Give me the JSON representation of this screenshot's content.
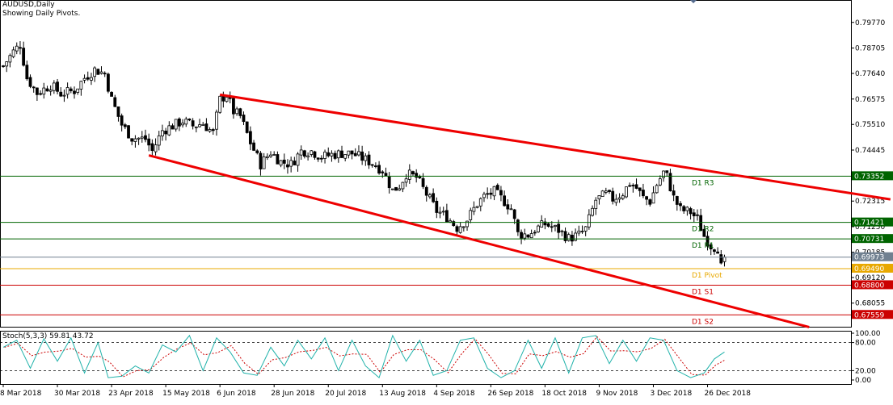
{
  "header": {
    "symbol": "AUDUSD,Daily",
    "indicator_note": "Showing Daily Pivots."
  },
  "colors": {
    "background": "#ffffff",
    "frame": "#000000",
    "bull_candle": "#ffffff",
    "bear_candle": "#000000",
    "wick": "#000000",
    "channel": "#ee0000",
    "resistance": "#006400",
    "pivot": "#e8a800",
    "support": "#cc0000",
    "current_price": "#708090",
    "stoch_main": "#20b2aa",
    "stoch_signal": "#cc0000",
    "label_text": "#ffffff"
  },
  "chart_data": [
    {
      "type": "candlestick",
      "symbol": "AUDUSD",
      "timeframe": "Daily",
      "ylim": [
        0.6703,
        0.8057
      ],
      "y_ticks": [
        0.7977,
        0.787,
        0.7764,
        0.7657,
        0.7551,
        0.7444,
        0.7338,
        0.7231,
        0.7124,
        0.7018,
        0.6912,
        0.6805
      ],
      "y_tick_labels": [
        "0.79770",
        "0.78705",
        "0.77640",
        "0.76575",
        "0.75510",
        "0.74445",
        "0.73380",
        "0.72315",
        "0.71250",
        "0.70185",
        "0.69120",
        "0.68055"
      ],
      "x_tick_labels": [
        "8 Mar 2018",
        "30 Mar 2018",
        "23 Apr 2018",
        "15 May 2018",
        "6 Jun 2018",
        "28 Jun 2018",
        "20 Jul 2018",
        "13 Aug 2018",
        "4 Sep 2018",
        "26 Sep 2018",
        "18 Oct 2018",
        "9 Nov 2018",
        "3 Dec 2018",
        "26 Dec 2018"
      ],
      "x_tick_bar_index": [
        0,
        16,
        32,
        48,
        64,
        80,
        96,
        112,
        128,
        144,
        160,
        176,
        192,
        208
      ],
      "bar_count": 214,
      "close_path": [
        [
          0,
          0.7795
        ],
        [
          3,
          0.7855
        ],
        [
          5,
          0.7885
        ],
        [
          7,
          0.7745
        ],
        [
          10,
          0.7682
        ],
        [
          14,
          0.7715
        ],
        [
          17,
          0.768
        ],
        [
          21,
          0.7692
        ],
        [
          24,
          0.7745
        ],
        [
          27,
          0.778
        ],
        [
          30,
          0.7763
        ],
        [
          32,
          0.7655
        ],
        [
          35,
          0.755
        ],
        [
          38,
          0.7495
        ],
        [
          42,
          0.749
        ],
        [
          44,
          0.744
        ],
        [
          47,
          0.7525
        ],
        [
          50,
          0.7545
        ],
        [
          53,
          0.7565
        ],
        [
          56,
          0.7545
        ],
        [
          59,
          0.7555
        ],
        [
          62,
          0.7515
        ],
        [
          64,
          0.7655
        ],
        [
          66,
          0.7675
        ],
        [
          68,
          0.7605
        ],
        [
          70,
          0.7585
        ],
        [
          73,
          0.7475
        ],
        [
          76,
          0.7385
        ],
        [
          79,
          0.7435
        ],
        [
          82,
          0.7395
        ],
        [
          85,
          0.7385
        ],
        [
          88,
          0.744
        ],
        [
          91,
          0.744
        ],
        [
          94,
          0.7415
        ],
        [
          97,
          0.7425
        ],
        [
          100,
          0.743
        ],
        [
          103,
          0.743
        ],
        [
          106,
          0.741
        ],
        [
          109,
          0.739
        ],
        [
          112,
          0.736
        ],
        [
          115,
          0.7275
        ],
        [
          117,
          0.7295
        ],
        [
          119,
          0.7345
        ],
        [
          122,
          0.733
        ],
        [
          125,
          0.726
        ],
        [
          128,
          0.719
        ],
        [
          131,
          0.7165
        ],
        [
          134,
          0.712
        ],
        [
          137,
          0.7155
        ],
        [
          140,
          0.722
        ],
        [
          142,
          0.725
        ],
        [
          145,
          0.727
        ],
        [
          148,
          0.723
        ],
        [
          150,
          0.72
        ],
        [
          152,
          0.7095
        ],
        [
          155,
          0.709
        ],
        [
          158,
          0.712
        ],
        [
          160,
          0.7135
        ],
        [
          164,
          0.711
        ],
        [
          167,
          0.7075
        ],
        [
          170,
          0.709
        ],
        [
          172,
          0.7115
        ],
        [
          175,
          0.7235
        ],
        [
          178,
          0.726
        ],
        [
          180,
          0.724
        ],
        [
          183,
          0.7265
        ],
        [
          185,
          0.7305
        ],
        [
          187,
          0.7285
        ],
        [
          189,
          0.7245
        ],
        [
          191,
          0.723
        ],
        [
          193,
          0.73
        ],
        [
          195,
          0.735
        ],
        [
          196,
          0.7335
        ],
        [
          198,
          0.7245
        ],
        [
          200,
          0.7195
        ],
        [
          203,
          0.7185
        ],
        [
          205,
          0.7155
        ],
        [
          207,
          0.7085
        ],
        [
          209,
          0.7045
        ],
        [
          211,
          0.7035
        ],
        [
          212,
          0.6955
        ],
        [
          213,
          0.6997
        ]
      ],
      "last_price": 0.6997,
      "last_price_label": "0.69973",
      "pivot_levels": [
        {
          "name": "D1 R3",
          "value": 0.7335,
          "label": "0.73352",
          "kind": "resistance"
        },
        {
          "name": "D1 R2",
          "value": 0.7142,
          "label": "0.71421",
          "kind": "resistance"
        },
        {
          "name": "D1 R1",
          "value": 0.7073,
          "label": "0.70731",
          "kind": "resistance"
        },
        {
          "name": "D1 Pivot",
          "value": 0.6949,
          "label": "0.69490",
          "kind": "pivot"
        },
        {
          "name": "D1 S1",
          "value": 0.688,
          "label": "0.68800",
          "kind": "support"
        },
        {
          "name": "D1 S2",
          "value": 0.6756,
          "label": "0.67559",
          "kind": "support"
        }
      ],
      "trendlines": [
        {
          "name": "upper-channel",
          "from": [
            64,
            0.7675
          ],
          "to": [
            262,
            0.7238
          ]
        },
        {
          "name": "lower-channel",
          "from": [
            43,
            0.7422
          ],
          "to": [
            238,
            0.6705
          ]
        }
      ]
    },
    {
      "type": "line",
      "indicator": "Stoch(5,3,3)",
      "title": "Stoch(5,3,3) 59.81 43.72",
      "main_value": 59.81,
      "signal_value": 43.72,
      "ylim": [
        0,
        100
      ],
      "y_ticks": [
        100,
        80,
        20,
        0
      ],
      "y_tick_labels": [
        "100.00",
        "80.00",
        "20.00",
        "0.00"
      ],
      "levels": [
        80,
        20
      ],
      "series_peaks": [
        [
          0,
          70
        ],
        [
          4,
          85
        ],
        [
          8,
          25
        ],
        [
          12,
          88
        ],
        [
          16,
          40
        ],
        [
          20,
          90
        ],
        [
          24,
          15
        ],
        [
          28,
          80
        ],
        [
          31,
          5
        ],
        [
          35,
          8
        ],
        [
          39,
          30
        ],
        [
          43,
          15
        ],
        [
          47,
          75
        ],
        [
          51,
          60
        ],
        [
          55,
          95
        ],
        [
          59,
          20
        ],
        [
          63,
          90
        ],
        [
          67,
          60
        ],
        [
          71,
          15
        ],
        [
          75,
          10
        ],
        [
          79,
          70
        ],
        [
          83,
          30
        ],
        [
          87,
          85
        ],
        [
          91,
          45
        ],
        [
          95,
          90
        ],
        [
          99,
          20
        ],
        [
          103,
          85
        ],
        [
          107,
          30
        ],
        [
          111,
          5
        ],
        [
          115,
          95
        ],
        [
          119,
          40
        ],
        [
          123,
          85
        ],
        [
          127,
          10
        ],
        [
          131,
          20
        ],
        [
          135,
          85
        ],
        [
          139,
          90
        ],
        [
          143,
          25
        ],
        [
          147,
          5
        ],
        [
          151,
          20
        ],
        [
          155,
          85
        ],
        [
          159,
          25
        ],
        [
          163,
          90
        ],
        [
          167,
          15
        ],
        [
          171,
          90
        ],
        [
          175,
          95
        ],
        [
          179,
          35
        ],
        [
          183,
          85
        ],
        [
          187,
          40
        ],
        [
          191,
          90
        ],
        [
          195,
          85
        ],
        [
          199,
          20
        ],
        [
          203,
          5
        ],
        [
          207,
          15
        ],
        [
          210,
          45
        ],
        [
          213,
          59.81
        ]
      ]
    }
  ]
}
